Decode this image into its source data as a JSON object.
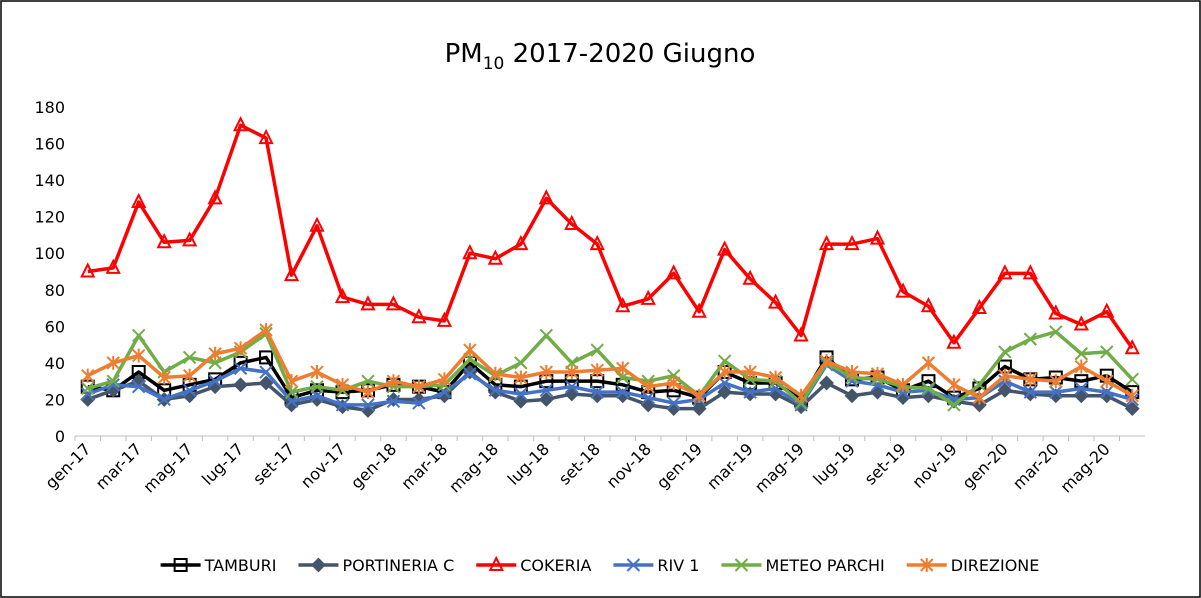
{
  "chart_data": {
    "type": "line",
    "title": [
      "PM",
      "10",
      " 2017-2020 Giugno"
    ],
    "categories": [
      "gen-17",
      null,
      "mar-17",
      null,
      "mag-17",
      null,
      "lug-17",
      null,
      "set-17",
      null,
      "nov-17",
      null,
      "gen-18",
      null,
      "mar-18",
      null,
      "mag-18",
      null,
      "lug-18",
      null,
      "set-18",
      null,
      "nov-18",
      null,
      "gen-19",
      null,
      "mar-19",
      null,
      "mag-19",
      null,
      "lug-19",
      null,
      "set-19",
      null,
      "nov-19",
      null,
      "gen-20",
      null,
      "mar-20",
      null,
      "mag-20",
      null
    ],
    "series": [
      {
        "name": "TAMBURI",
        "color": "#000000",
        "marker": "square",
        "values": [
          27,
          25,
          35,
          25,
          28,
          31,
          40,
          43,
          21,
          25,
          24,
          25,
          28,
          27,
          24,
          40,
          28,
          27,
          30,
          30,
          30,
          28,
          24,
          25,
          21,
          35,
          29,
          29,
          20,
          43,
          31,
          32,
          25,
          30,
          21,
          26,
          38,
          31,
          32,
          30,
          33,
          24
        ]
      },
      {
        "name": "PORTINERIA C",
        "color": "#44546a",
        "marker": "diamond",
        "values": [
          20,
          25,
          30,
          20,
          22,
          27,
          28,
          29,
          17,
          20,
          16,
          14,
          20,
          20,
          22,
          35,
          24,
          19,
          20,
          23,
          22,
          22,
          17,
          15,
          15,
          24,
          23,
          23,
          16,
          29,
          22,
          24,
          21,
          22,
          19,
          17,
          25,
          23,
          22,
          22,
          22,
          15
        ]
      },
      {
        "name": "COKERIA",
        "color": "#ff0000",
        "marker": "triangle",
        "values": [
          90,
          92,
          128,
          106,
          107,
          130,
          170,
          163,
          88,
          115,
          76,
          72,
          72,
          65,
          63,
          100,
          97,
          105,
          130,
          116,
          105,
          71,
          75,
          89,
          68,
          102,
          86,
          73,
          55,
          105,
          105,
          108,
          79,
          71,
          51,
          70,
          89,
          89,
          67,
          61,
          68,
          48
        ]
      },
      {
        "name": "RIV 1",
        "color": "#4472c4",
        "marker": "x",
        "values": [
          23,
          28,
          27,
          20,
          25,
          30,
          37,
          35,
          19,
          22,
          17,
          17,
          19,
          18,
          24,
          34,
          25,
          23,
          25,
          27,
          24,
          24,
          21,
          18,
          20,
          29,
          24,
          26,
          17,
          39,
          30,
          28,
          24,
          25,
          20,
          21,
          30,
          24,
          24,
          26,
          24,
          20
        ]
      },
      {
        "name": "METEO PARCHI",
        "color": "#70ad47",
        "marker": "x",
        "values": [
          26,
          30,
          55,
          35,
          43,
          40,
          46,
          56,
          24,
          27,
          25,
          30,
          27,
          27,
          28,
          42,
          33,
          40,
          55,
          40,
          47,
          32,
          30,
          33,
          22,
          41,
          31,
          30,
          18,
          40,
          32,
          31,
          27,
          26,
          17,
          28,
          46,
          53,
          57,
          45,
          46,
          31
        ]
      },
      {
        "name": "DIREZIONE",
        "color": "#ed7d31",
        "marker": "asterisk",
        "values": [
          33,
          40,
          44,
          32,
          33,
          45,
          48,
          58,
          30,
          35,
          28,
          24,
          30,
          27,
          31,
          47,
          34,
          32,
          35,
          35,
          36,
          37,
          27,
          29,
          22,
          35,
          35,
          32,
          22,
          41,
          35,
          34,
          28,
          40,
          28,
          21,
          33,
          31,
          30,
          38,
          30,
          22
        ]
      }
    ],
    "ylim": [
      0,
      180
    ],
    "yticks": [
      0,
      20,
      40,
      60,
      80,
      100,
      120,
      140,
      160,
      180
    ],
    "legend": "bottom"
  }
}
